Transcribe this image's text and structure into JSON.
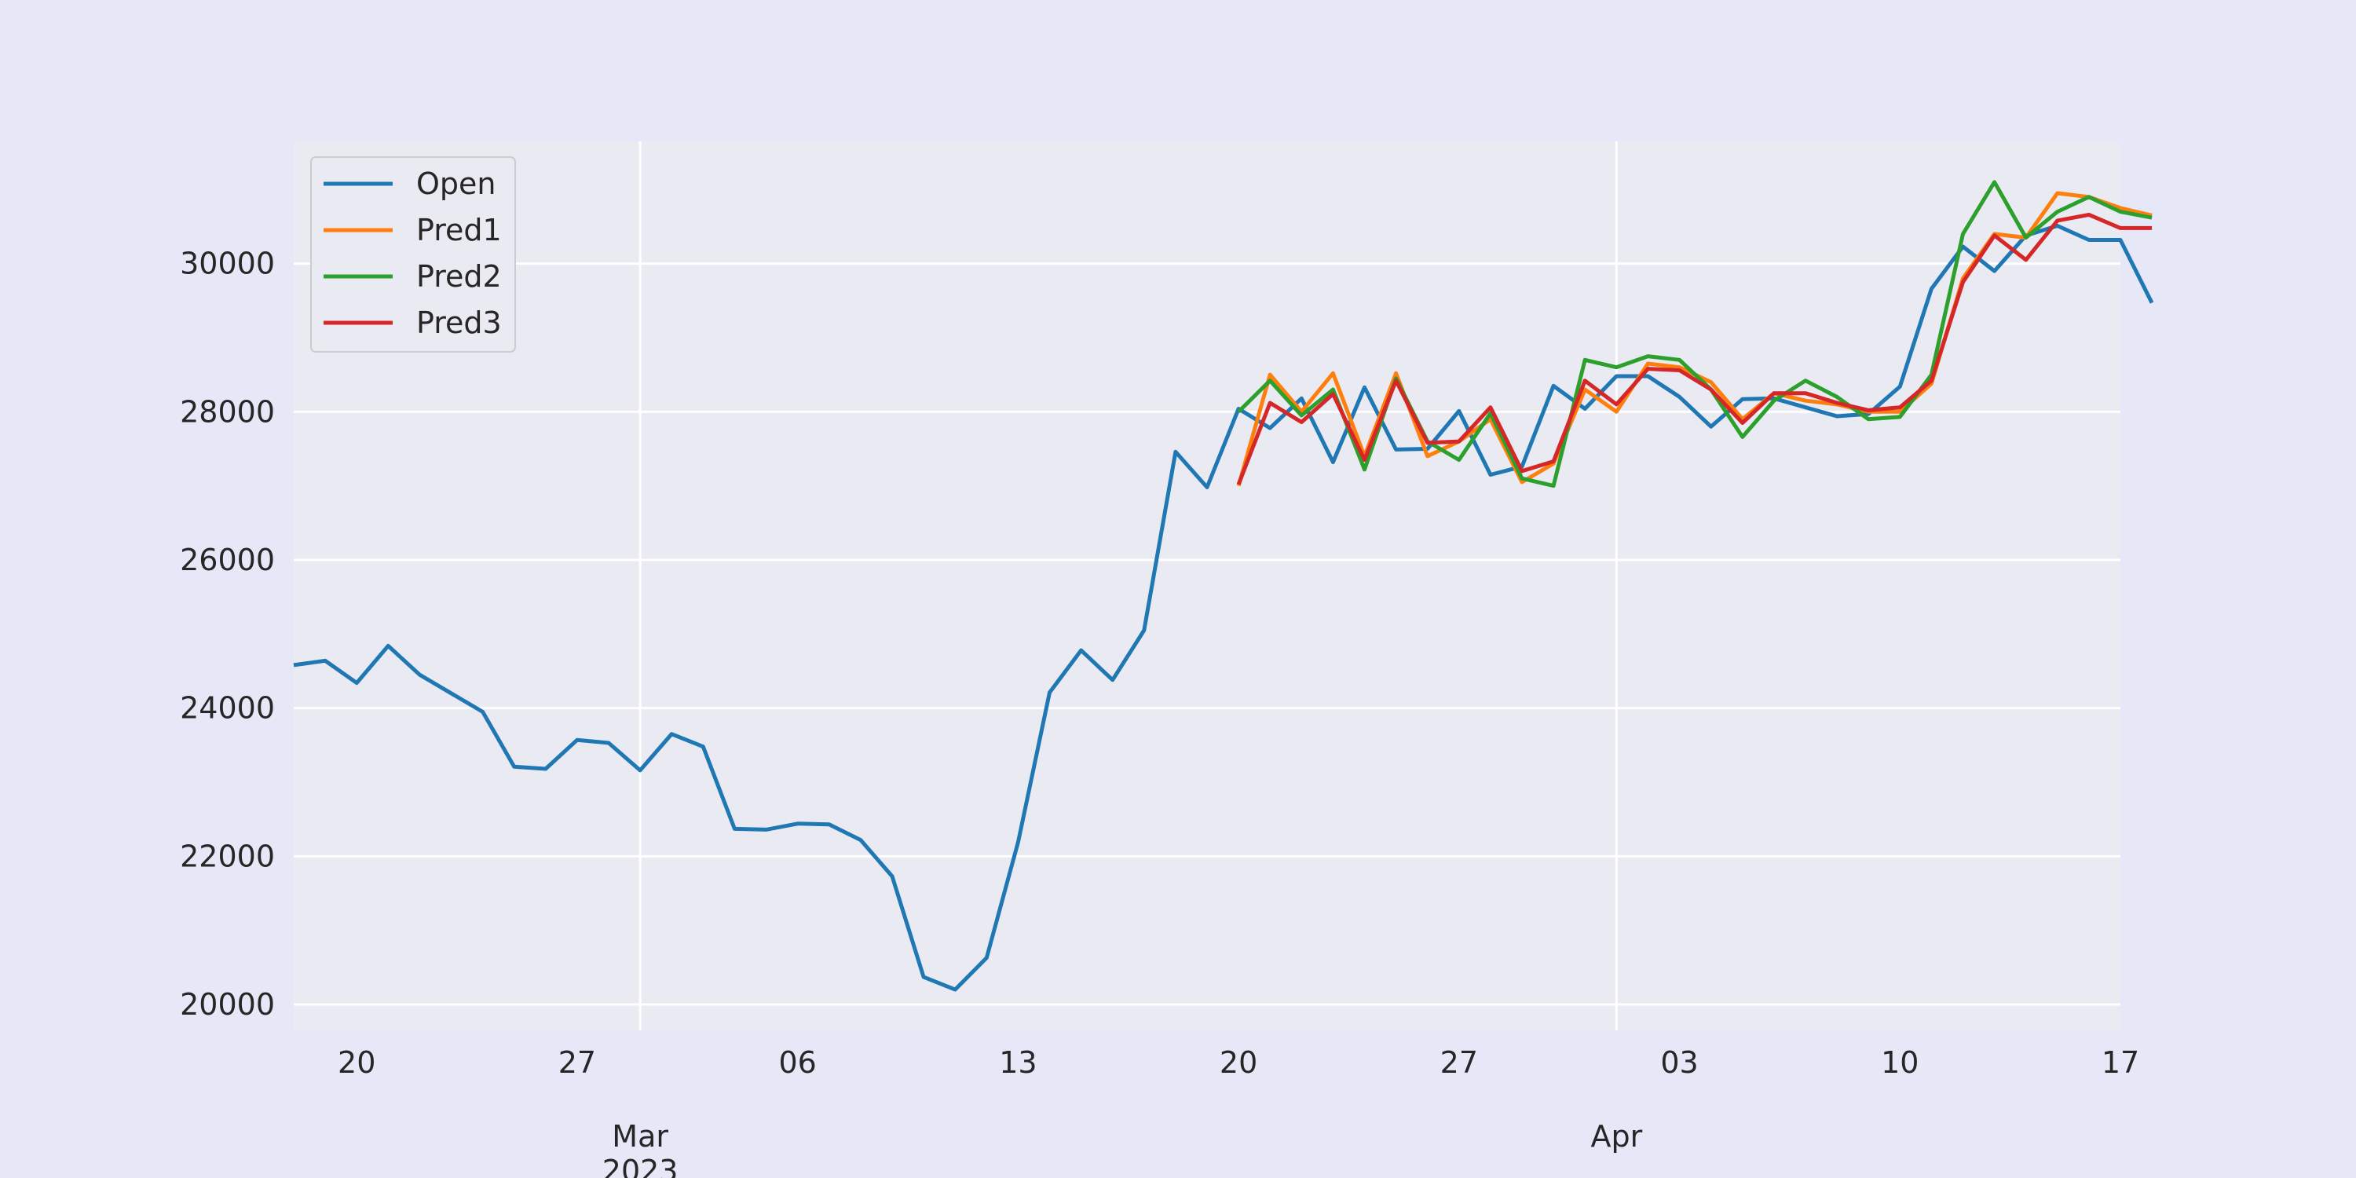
{
  "chart_data": {
    "type": "line",
    "title": "",
    "xlabel": "",
    "ylabel": "",
    "x_range": [
      "2023-02-18",
      "2023-04-17"
    ],
    "ylim": [
      19650,
      31650
    ],
    "grid": true,
    "legend_position": "top-left",
    "x_ticks": [
      {
        "date": "2023-02-20",
        "label": "20"
      },
      {
        "date": "2023-02-27",
        "label": "27"
      },
      {
        "date": "2023-03-06",
        "label": "06"
      },
      {
        "date": "2023-03-13",
        "label": "13"
      },
      {
        "date": "2023-03-20",
        "label": "20"
      },
      {
        "date": "2023-03-27",
        "label": "27"
      },
      {
        "date": "2023-04-03",
        "label": "03"
      },
      {
        "date": "2023-04-10",
        "label": "10"
      },
      {
        "date": "2023-04-17",
        "label": "17"
      }
    ],
    "x_major_ticks": [
      {
        "date": "2023-03-01",
        "label": "Mar",
        "sublabel": "2023"
      },
      {
        "date": "2023-04-01",
        "label": "Apr",
        "sublabel": ""
      }
    ],
    "y_ticks": [
      20000,
      22000,
      24000,
      26000,
      28000,
      30000
    ],
    "series": [
      {
        "name": "Open",
        "color": "#1f77b4",
        "start": "2023-02-18",
        "values": [
          24580,
          24640,
          24340,
          24840,
          24450,
          24200,
          23950,
          23210,
          23180,
          23570,
          23530,
          23160,
          23650,
          23480,
          22370,
          22360,
          22440,
          22430,
          22220,
          21730,
          20370,
          20200,
          20630,
          22190,
          24210,
          24780,
          24380,
          25050,
          27460,
          26980,
          28040,
          27780,
          28180,
          27320,
          28330,
          27490,
          27500,
          28010,
          27150,
          27260,
          28350,
          28040,
          28480,
          28480,
          28200,
          27800,
          28170,
          28180,
          28060,
          27940,
          27970,
          28340,
          29660,
          30230,
          29900,
          30380,
          30510,
          30320,
          30320,
          29470
        ]
      },
      {
        "name": "Pred1",
        "color": "#ff7f0e",
        "start": "2023-03-20",
        "values": [
          27000,
          28500,
          28000,
          28520,
          27400,
          28520,
          27400,
          27600,
          27900,
          27050,
          27300,
          28300,
          28000,
          28650,
          28600,
          28400,
          27900,
          28250,
          28150,
          28100,
          28000,
          28000,
          28380,
          29800,
          30400,
          30350,
          30950,
          30900,
          30750,
          30650
        ]
      },
      {
        "name": "Pred2",
        "color": "#2ca02c",
        "start": "2023-03-20",
        "values": [
          28000,
          28420,
          27950,
          28300,
          27220,
          28450,
          27600,
          27350,
          27980,
          27100,
          27000,
          28700,
          28600,
          28750,
          28700,
          28300,
          27660,
          28150,
          28420,
          28200,
          27900,
          27930,
          28500,
          30400,
          31100,
          30350,
          30700,
          30900,
          30700,
          30620
        ]
      },
      {
        "name": "Pred3",
        "color": "#d62728",
        "start": "2023-03-20",
        "values": [
          27020,
          28120,
          27860,
          28240,
          27350,
          28420,
          27580,
          27600,
          28060,
          27200,
          27330,
          28420,
          28100,
          28580,
          28560,
          28300,
          27850,
          28250,
          28250,
          28120,
          28020,
          28060,
          28420,
          29750,
          30380,
          30050,
          30580,
          30660,
          30480,
          30480
        ]
      }
    ]
  }
}
